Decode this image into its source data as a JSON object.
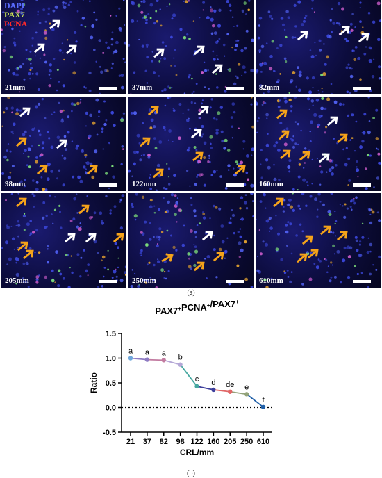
{
  "figure_a": {
    "legend": [
      "DAPI",
      "PAX7",
      "PCNA"
    ],
    "legend_colors": [
      "#5a6cff",
      "#c8e65a",
      "#ff2a2a"
    ],
    "panels": [
      {
        "label": "21mm"
      },
      {
        "label": "37mm"
      },
      {
        "label": "82mm"
      },
      {
        "label": "98mm"
      },
      {
        "label": "122mm"
      },
      {
        "label": "160mm"
      },
      {
        "label": "205mm"
      },
      {
        "label": "250mm"
      },
      {
        "label": "610mm"
      }
    ],
    "caption": "(a)"
  },
  "figure_b": {
    "caption": "(b)"
  },
  "chart_data": {
    "type": "line",
    "title": "PAX7+PCNA+/PAX7+",
    "xlabel": "CRL/mm",
    "ylabel": "Ratio",
    "categories": [
      "21",
      "37",
      "82",
      "98",
      "122",
      "160",
      "205",
      "250",
      "610"
    ],
    "values": [
      1.0,
      0.97,
      0.96,
      0.87,
      0.43,
      0.36,
      0.32,
      0.27,
      0.01
    ],
    "letters": [
      "a",
      "a",
      "a",
      "b",
      "c",
      "d",
      "de",
      "e",
      "f"
    ],
    "point_colors": [
      "#6fa8dc",
      "#8e7cc3",
      "#c27ba0",
      "#b4a7d6",
      "#45a7a0",
      "#3d3f9c",
      "#e06666",
      "#93a37a",
      "#1f5fa8"
    ],
    "ylim": [
      -0.5,
      1.5
    ],
    "yticks": [
      "-0.5",
      "0.0",
      "0.5",
      "1.0",
      "1.5"
    ],
    "reference_line": 0.0,
    "grid": false
  }
}
